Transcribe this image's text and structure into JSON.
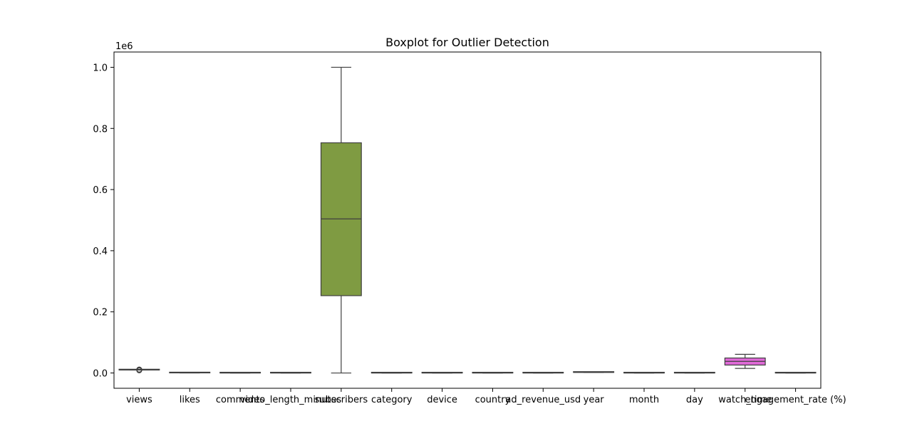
{
  "chart_data": {
    "type": "box",
    "title": "Boxplot for Outlier Detection",
    "xlabel": "",
    "ylabel": "",
    "y_offset_label": "1e6",
    "ylim": [
      -0.05,
      1.05
    ],
    "yticks": [
      0.0,
      0.2,
      0.4,
      0.6,
      0.8,
      1.0
    ],
    "ytick_labels": [
      "0.0",
      "0.2",
      "0.4",
      "0.6",
      "0.8",
      "1.0"
    ],
    "grid": false,
    "categories": [
      "views",
      "likes",
      "comments",
      "video_length_minutes",
      "subscribers",
      "category",
      "device",
      "country",
      "ad_revenue_usd",
      "year",
      "month",
      "day",
      "watch_time",
      "engagement_rate (%)"
    ],
    "series": [
      {
        "category": "views",
        "whisker_low": 0.0098,
        "q1": 0.0099,
        "median": 0.01,
        "q3": 0.0101,
        "whisker_high": 0.0102,
        "outliers": [
          0.0085,
          0.009,
          0.0094,
          0.0106,
          0.011,
          0.0115
        ],
        "color": "#5f7cd3"
      },
      {
        "category": "likes",
        "whisker_low": 0.0,
        "q1": 0.0003,
        "median": 0.0005,
        "q3": 0.0008,
        "whisker_high": 0.001,
        "outliers": [],
        "color": "#d67f33"
      },
      {
        "category": "comments",
        "whisker_low": 0.0,
        "q1": 3e-05,
        "median": 5e-05,
        "q3": 8e-05,
        "whisker_high": 0.0001,
        "outliers": [],
        "color": "#4aa55a"
      },
      {
        "category": "video_length_minutes",
        "whisker_low": 0.0,
        "q1": 1e-05,
        "median": 2e-05,
        "q3": 3e-05,
        "whisker_high": 4e-05,
        "outliers": [],
        "color": "#d9555c"
      },
      {
        "category": "subscribers",
        "whisker_low": 0.0,
        "q1": 0.253,
        "median": 0.504,
        "q3": 0.753,
        "whisker_high": 1.0,
        "outliers": [],
        "color": "#7f9b42"
      },
      {
        "category": "category",
        "whisker_low": 0.0,
        "q1": 0.0,
        "median": 0.0,
        "q3": 0.0,
        "whisker_high": 0.0,
        "outliers": [],
        "color": "#b5a03f"
      },
      {
        "category": "device",
        "whisker_low": 0.0,
        "q1": 0.0,
        "median": 0.0,
        "q3": 0.0,
        "whisker_high": 0.0,
        "outliers": [],
        "color": "#4db3a6"
      },
      {
        "category": "country",
        "whisker_low": 0.0,
        "q1": 0.0,
        "median": 0.0,
        "q3": 0.0,
        "whisker_high": 0.0,
        "outliers": [],
        "color": "#5fa1c9"
      },
      {
        "category": "ad_revenue_usd",
        "whisker_low": 0.0,
        "q1": 0.0,
        "median": 1e-05,
        "q3": 2e-05,
        "whisker_high": 3e-05,
        "outliers": [],
        "color": "#7f8fd6"
      },
      {
        "category": "year",
        "whisker_low": 0.00202,
        "q1": 0.00202,
        "median": 0.00202,
        "q3": 0.00202,
        "whisker_high": 0.00202,
        "outliers": [],
        "color": "#b178d6"
      },
      {
        "category": "month",
        "whisker_low": 0.0,
        "q1": 0.0,
        "median": 0.0,
        "q3": 0.0,
        "whisker_high": 0.0,
        "outliers": [],
        "color": "#c86fbf"
      },
      {
        "category": "day",
        "whisker_low": 0.0,
        "q1": 0.0,
        "median": 0.0,
        "q3": 0.0,
        "whisker_high": 0.0,
        "outliers": [],
        "color": "#d4669b"
      },
      {
        "category": "watch_time",
        "whisker_low": 0.015,
        "q1": 0.026,
        "median": 0.038,
        "q3": 0.049,
        "whisker_high": 0.061,
        "outliers": [],
        "color": "#e06ad8"
      },
      {
        "category": "engagement_rate (%)",
        "whisker_low": 0.0,
        "q1": 0.0,
        "median": 0.0,
        "q3": 0.0,
        "whisker_high": 0.0,
        "outliers": [],
        "color": "#e8839c"
      }
    ]
  }
}
